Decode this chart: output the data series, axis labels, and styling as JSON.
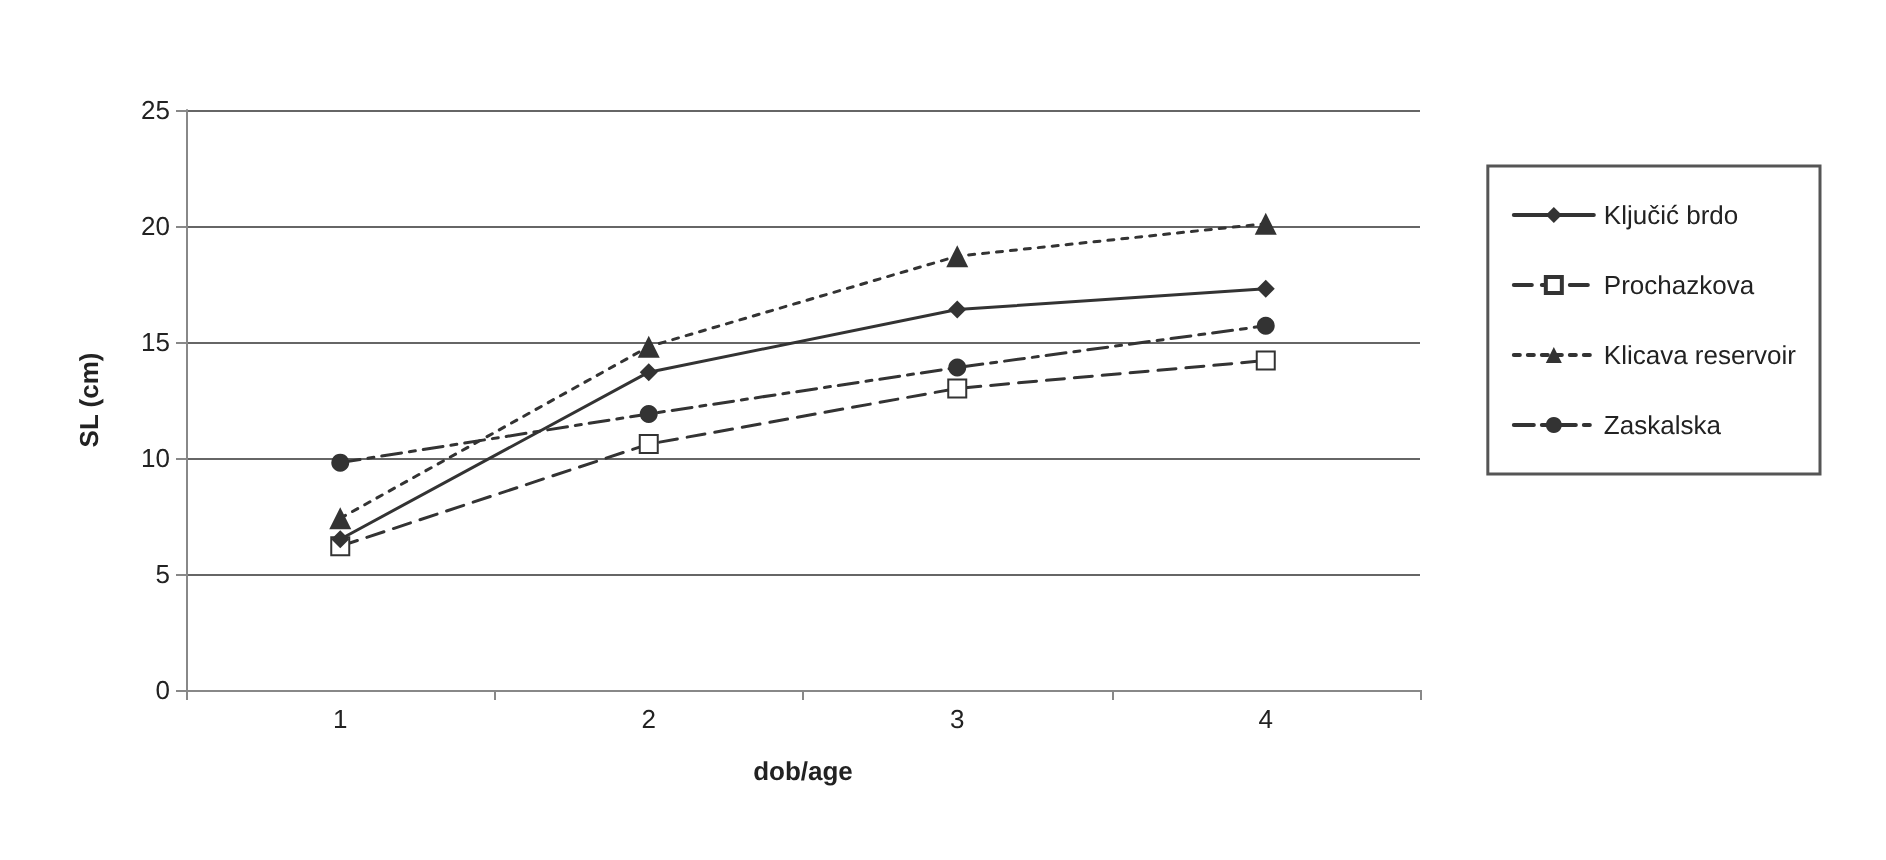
{
  "chart_data": {
    "type": "line",
    "xlabel": "dob/age",
    "ylabel": "SL (cm)",
    "categories": [
      "1",
      "2",
      "3",
      "4"
    ],
    "series": [
      {
        "name": "Ključić brdo",
        "color": "#333333",
        "marker": "diamond",
        "line_style": "solid",
        "values": [
          6.5,
          13.7,
          16.4,
          17.3
        ]
      },
      {
        "name": "Prochazkova",
        "color": "#333333",
        "marker": "square",
        "line_style": "dashed",
        "values": [
          6.2,
          10.6,
          13.0,
          14.2
        ]
      },
      {
        "name": "Klicava reservoir",
        "color": "#333333",
        "marker": "triangle",
        "line_style": "dotted",
        "values": [
          7.4,
          14.8,
          18.7,
          20.1
        ]
      },
      {
        "name": "Zaskalska",
        "color": "#333333",
        "marker": "circle",
        "line_style": "dashdot",
        "values": [
          9.8,
          11.9,
          13.9,
          15.7
        ]
      }
    ],
    "ylim": [
      0,
      25
    ],
    "yticks": [
      0,
      5,
      10,
      15,
      20,
      25
    ],
    "grid": "y",
    "legend": "right"
  }
}
